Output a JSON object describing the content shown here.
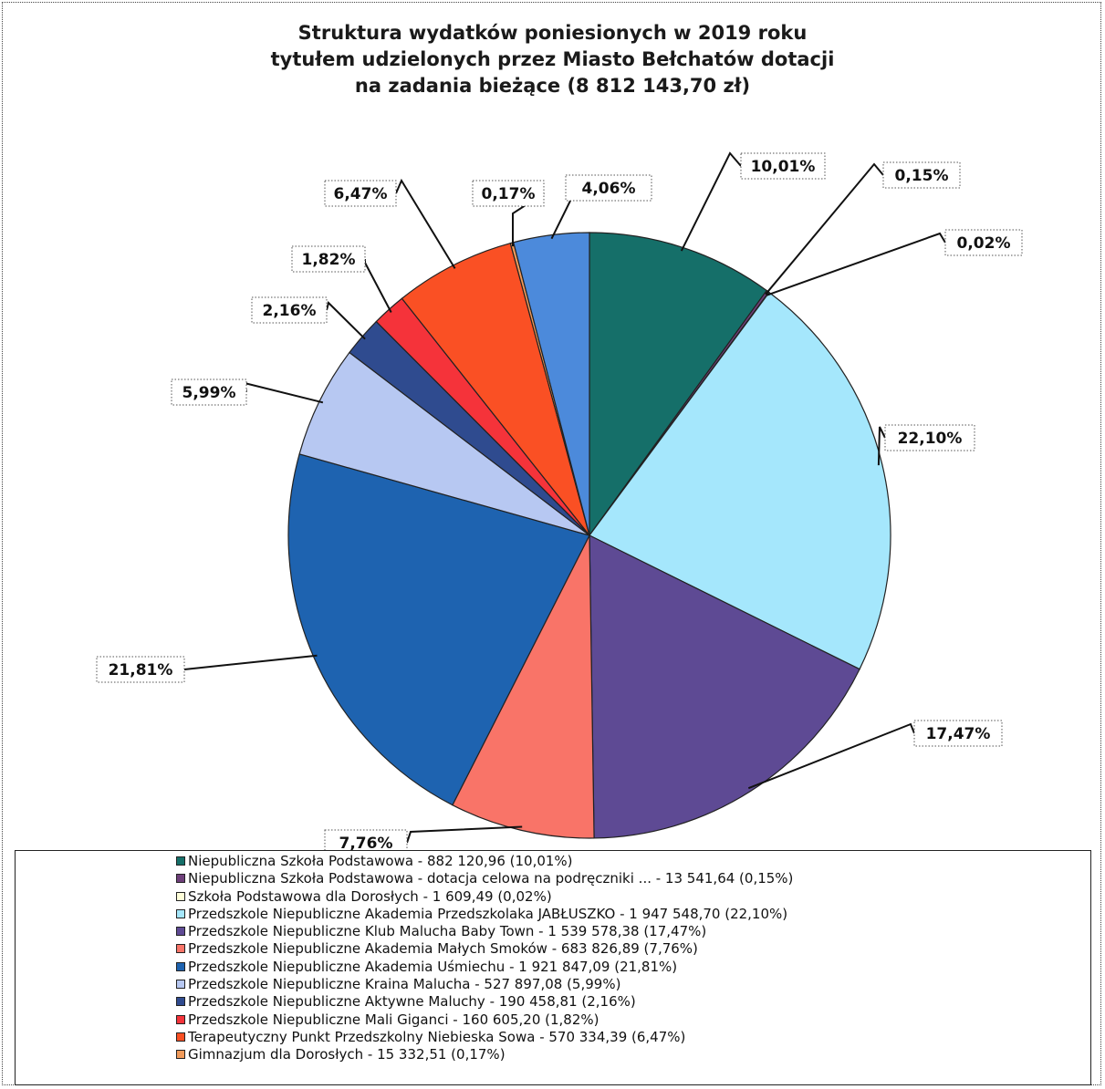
{
  "header": {
    "title_lines": [
      "Struktura wydatków poniesionych w 2019 roku",
      "tytułem udzielonych przez Miasto Bełchatów dotacji",
      "na zadania bieżące (8 812 143,70 zł)"
    ]
  },
  "chart_data": {
    "type": "pie",
    "title": "Struktura wydatków poniesionych w 2019 roku tytułem udzielonych przez Miasto Bełchatów dotacji na zadania bieżące (8 812 143,70 zł)",
    "legend_position": "bottom",
    "slices": [
      {
        "percent": 10.01,
        "label": "10,01%",
        "color": "#156F69",
        "legend": "Niepubliczna Szkoła Podstawowa - 882 120,96 (10,01%)"
      },
      {
        "percent": 0.15,
        "label": "0,15%",
        "color": "#6E3F7A",
        "legend": "Niepubliczna Szkoła Podstawowa -  dotacja celowa na podręczniki ... - 13 541,64 (0,15%)"
      },
      {
        "percent": 0.02,
        "label": "0,02%",
        "color": "#FFFFD9",
        "legend": "Szkoła Podstawowa dla Dorosłych - 1 609,49 (0,02%)"
      },
      {
        "percent": 22.1,
        "label": "22,10%",
        "color": "#A5E7FC",
        "legend": "Przedszkole Niepubliczne Akademia Przedszkolaka JABŁUSZKO - 1 947 548,70 (22,10%)"
      },
      {
        "percent": 17.47,
        "label": "17,47%",
        "color": "#5E4A94",
        "legend": "Przedszkole Niepubliczne Klub Malucha Baby Town - 1 539 578,38 (17,47%)"
      },
      {
        "percent": 7.76,
        "label": "7,76%",
        "color": "#F97468",
        "legend": "Przedszkole Niepubliczne Akademia Małych Smoków - 683 826,89 (7,76%)"
      },
      {
        "percent": 21.81,
        "label": "21,81%",
        "color": "#1E63B0",
        "legend": "Przedszkole Niepubliczne Akademia Uśmiechu - 1 921 847,09 (21,81%)"
      },
      {
        "percent": 5.99,
        "label": "5,99%",
        "color": "#B7C8F2",
        "legend": "Przedszkole Niepubliczne Kraina Malucha - 527 897,08 (5,99%)"
      },
      {
        "percent": 2.16,
        "label": "2,16%",
        "color": "#2F4B8F",
        "legend": "Przedszkole Niepubliczne Aktywne Maluchy - 190 458,81 (2,16%)"
      },
      {
        "percent": 1.82,
        "label": "1,82%",
        "color": "#F5333A",
        "legend": "Przedszkole Niepubliczne Mali Giganci - 160 605,20 (1,82%)"
      },
      {
        "percent": 6.47,
        "label": "6,47%",
        "color": "#FA5024",
        "legend": "Terapeutyczny Punkt Przedszkolny Niebieska Sowa - 570 334,39 (6,47%)"
      },
      {
        "percent": 0.17,
        "label": "0,17%",
        "color": "#F09A5A",
        "legend": "Gimnazjum dla Dorosłych - 15 332,51 (0,17%)"
      },
      {
        "percent": 4.06,
        "label": "4,06%",
        "color": "#4C8ADB",
        "legend": ""
      }
    ]
  }
}
